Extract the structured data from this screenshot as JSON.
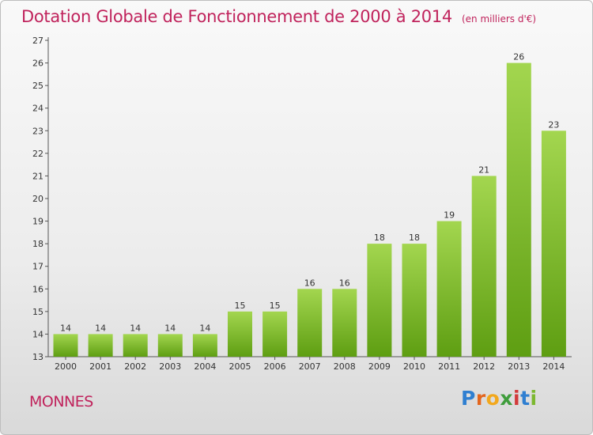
{
  "header": {
    "title": "Dotation Globale de Fonctionnement de 2000 à 2014",
    "subtitle": "(en milliers d'€)"
  },
  "footer": {
    "commune": "MONNES",
    "logo": [
      "P",
      "r",
      "o",
      "x",
      "i",
      "t",
      "i"
    ]
  },
  "chart_data": {
    "type": "bar",
    "title": "Dotation Globale de Fonctionnement de 2000 à 2014",
    "subtitle": "(en milliers d'€)",
    "xlabel": "",
    "ylabel": "",
    "categories": [
      "2000",
      "2001",
      "2002",
      "2003",
      "2004",
      "2005",
      "2006",
      "2007",
      "2008",
      "2009",
      "2010",
      "2011",
      "2012",
      "2013",
      "2014"
    ],
    "values": [
      14,
      14,
      14,
      14,
      14,
      15,
      15,
      16,
      16,
      18,
      18,
      19,
      21,
      26,
      23
    ],
    "ylim": [
      13,
      27
    ],
    "yticks": [
      13,
      14,
      15,
      16,
      17,
      18,
      19,
      20,
      21,
      22,
      23,
      24,
      25,
      26,
      27
    ],
    "grid": false,
    "colors": {
      "bar_top": "#a3d64f",
      "bar_bottom": "#5e9e12",
      "axis": "#555555",
      "title": "#c0235c"
    }
  }
}
